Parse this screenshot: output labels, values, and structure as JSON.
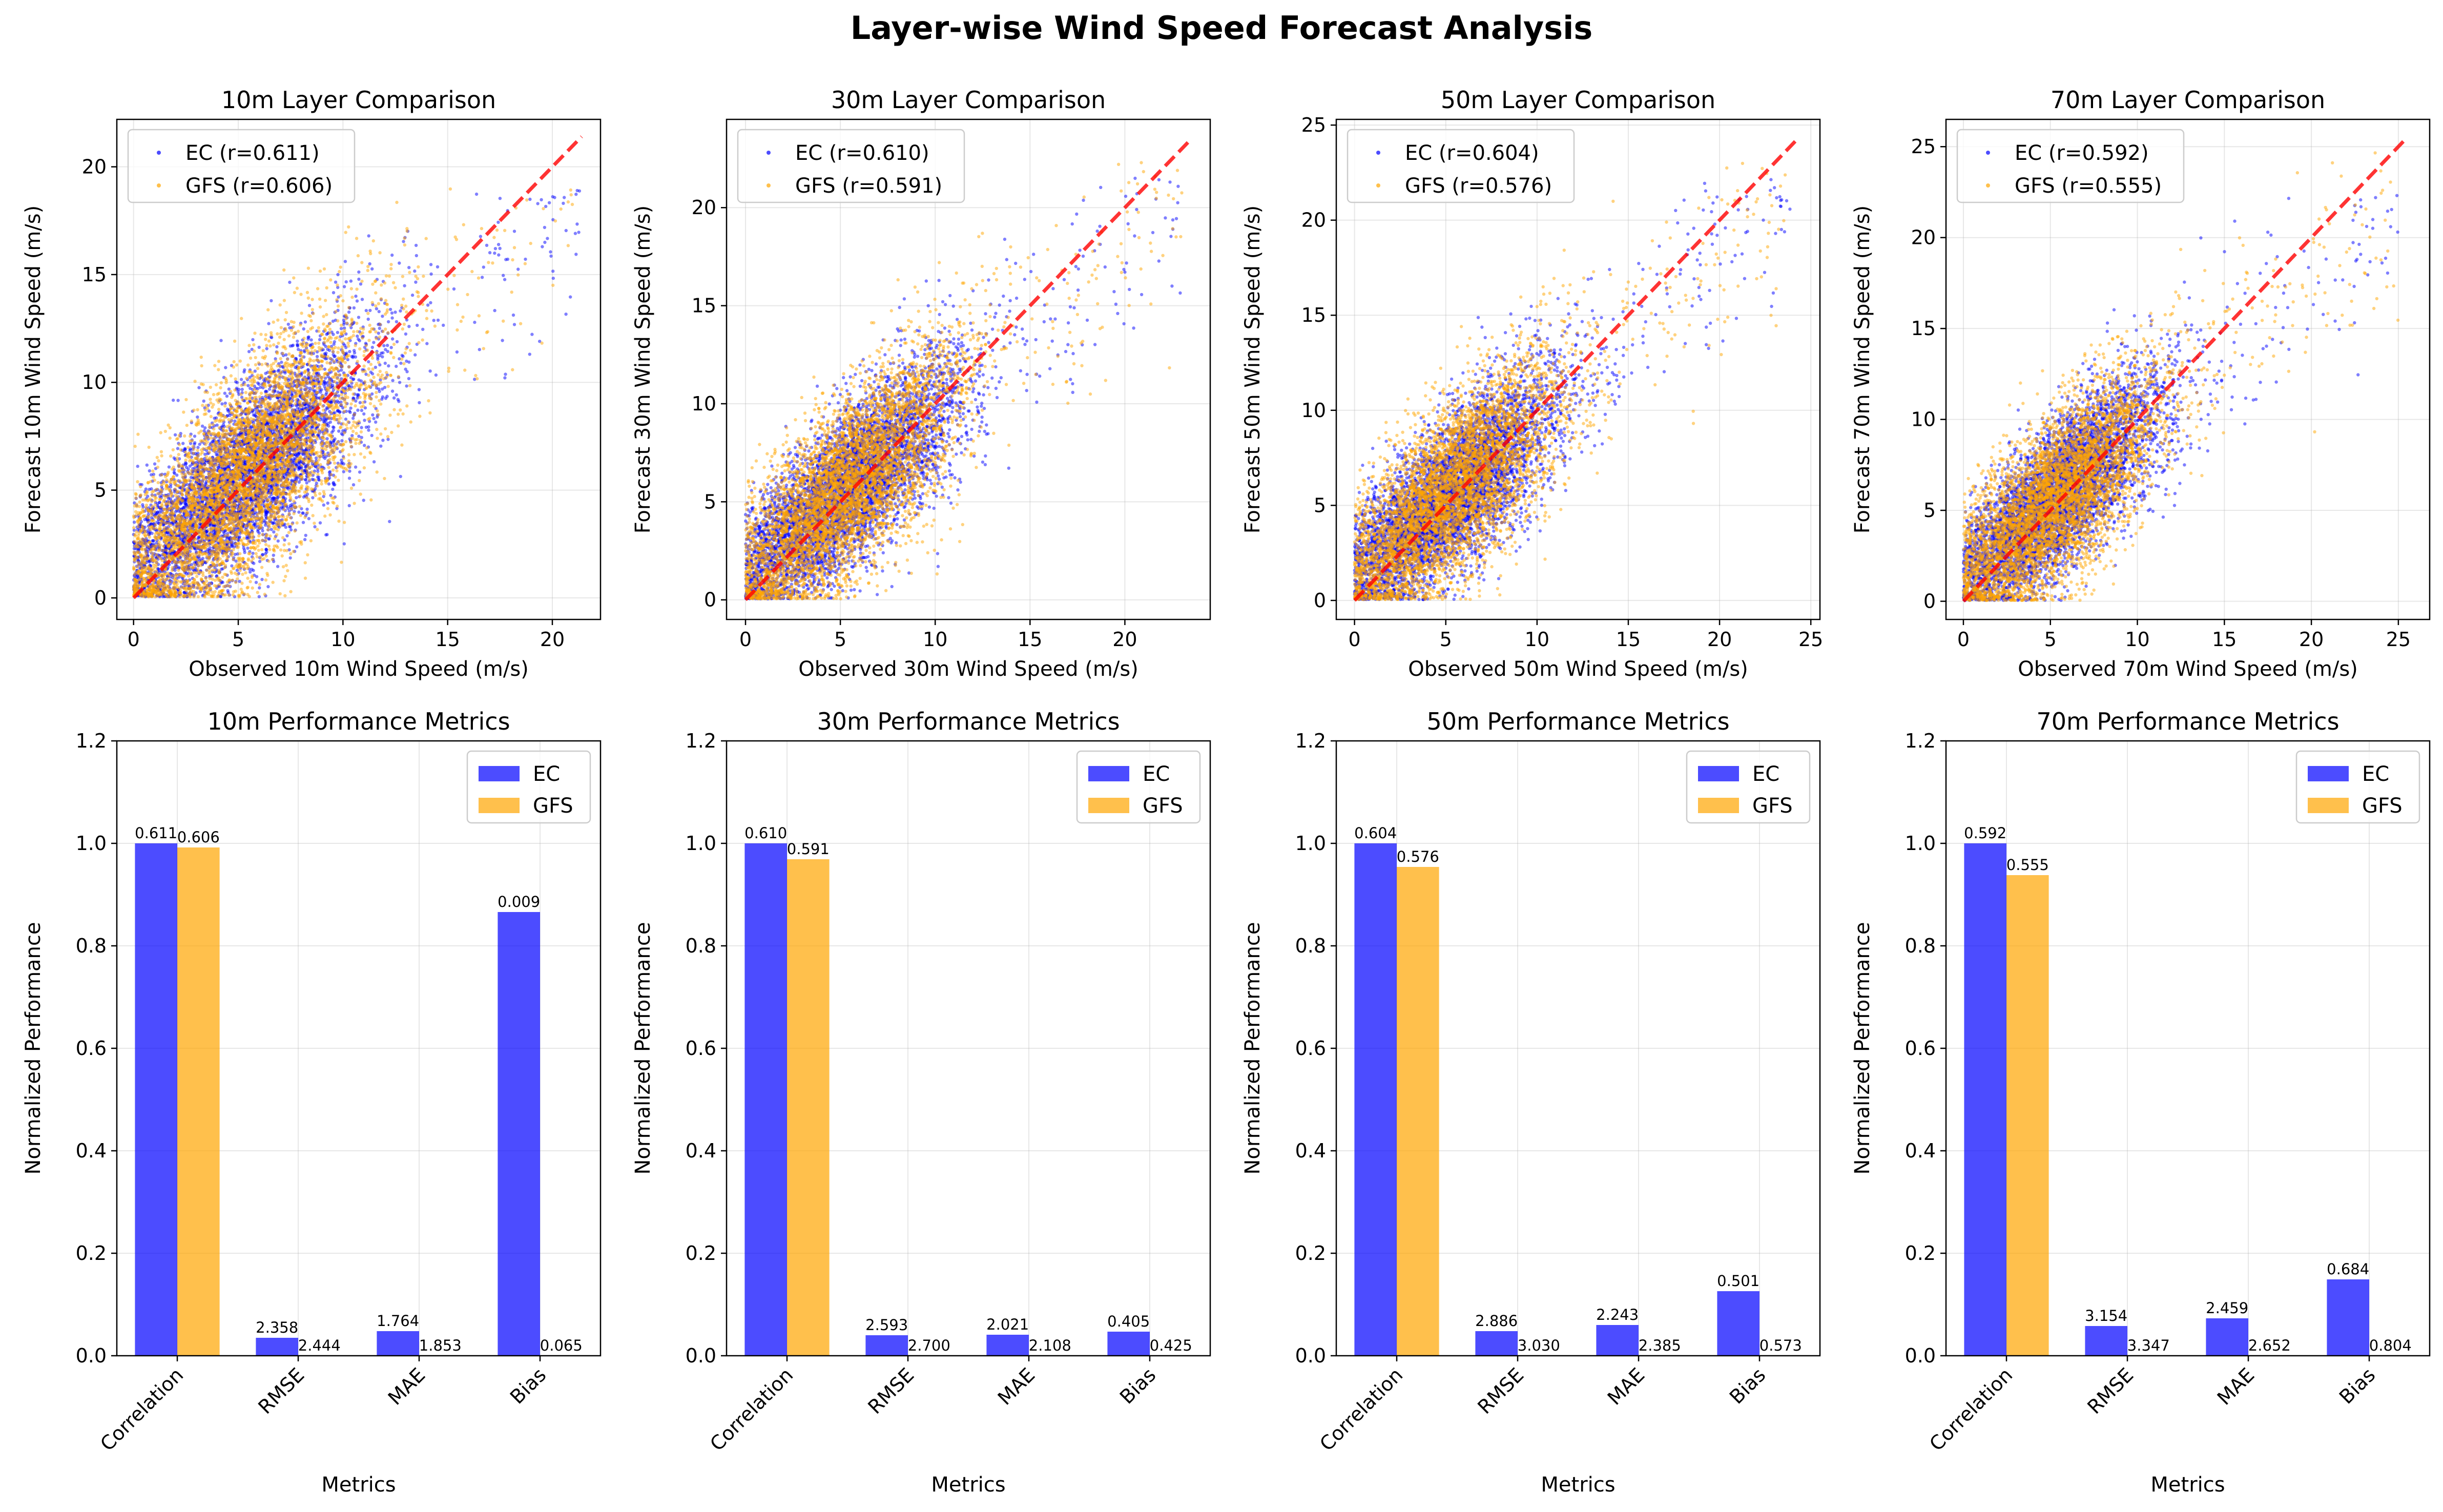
{
  "figure": {
    "title": "Layer-wise Wind Speed Forecast Analysis"
  },
  "colors": {
    "ec": "#0000ff",
    "gfs": "#ffa500",
    "diagonal": "#ff0000",
    "grid": "#b0b0b0"
  },
  "chart_data": [
    {
      "type": "scatter",
      "layer": "10m",
      "title": "10m Layer Comparison",
      "xlabel": "Observed 10m Wind Speed (m/s)",
      "ylabel": "Forecast 10m Wind Speed (m/s)",
      "xlim": [
        -0.8,
        22.3
      ],
      "ylim": [
        -1.0,
        22.2
      ],
      "xticks": [
        0,
        5,
        10,
        15,
        20
      ],
      "yticks": [
        0,
        5,
        10,
        15,
        20
      ],
      "diagonal_max": 21.4,
      "legend_location": "upper-left",
      "grid": true,
      "series": [
        {
          "name": "EC (r=0.611)",
          "r": 0.611,
          "obs_max": 21.4,
          "fc_max": 19.0
        },
        {
          "name": "GFS (r=0.606)",
          "r": 0.606,
          "obs_max": 21.0,
          "fc_max": 19.0
        }
      ]
    },
    {
      "type": "scatter",
      "layer": "30m",
      "title": "30m Layer Comparison",
      "xlabel": "Observed 30m Wind Speed (m/s)",
      "ylabel": "Forecast 30m Wind Speed (m/s)",
      "xlim": [
        -1.0,
        24.5
      ],
      "ylim": [
        -1.0,
        24.5
      ],
      "xticks": [
        0,
        5,
        10,
        15,
        20
      ],
      "yticks": [
        0,
        5,
        10,
        15,
        20
      ],
      "diagonal_max": 23.4,
      "legend_location": "upper-left",
      "grid": true,
      "series": [
        {
          "name": "EC (r=0.610)",
          "r": 0.61,
          "obs_max": 23.0,
          "fc_max": 21.5
        },
        {
          "name": "GFS (r=0.591)",
          "r": 0.591,
          "obs_max": 23.0,
          "fc_max": 22.3
        }
      ]
    },
    {
      "type": "scatter",
      "layer": "50m",
      "title": "50m Layer Comparison",
      "xlabel": "Observed 50m Wind Speed (m/s)",
      "ylabel": "Forecast 50m Wind Speed (m/s)",
      "xlim": [
        -1.0,
        25.5
      ],
      "ylim": [
        -1.0,
        25.3
      ],
      "xticks": [
        0,
        5,
        10,
        15,
        20,
        25
      ],
      "yticks": [
        0,
        5,
        10,
        15,
        20,
        25
      ],
      "diagonal_max": 24.3,
      "legend_location": "upper-left",
      "grid": true,
      "series": [
        {
          "name": "EC (r=0.604)",
          "r": 0.604,
          "obs_max": 24.0,
          "fc_max": 22.5
        },
        {
          "name": "GFS (r=0.576)",
          "r": 0.576,
          "obs_max": 24.0,
          "fc_max": 23.6
        }
      ]
    },
    {
      "type": "scatter",
      "layer": "70m",
      "title": "70m Layer Comparison",
      "xlabel": "Observed 70m Wind Speed (m/s)",
      "ylabel": "Forecast 70m Wind Speed (m/s)",
      "xlim": [
        -1.0,
        26.8
      ],
      "ylim": [
        -1.0,
        26.5
      ],
      "xticks": [
        0,
        5,
        10,
        15,
        20,
        25
      ],
      "yticks": [
        0,
        5,
        10,
        15,
        20,
        25
      ],
      "diagonal_max": 25.4,
      "legend_location": "upper-left",
      "grid": true,
      "series": [
        {
          "name": "EC (r=0.592)",
          "r": 0.592,
          "obs_max": 25.0,
          "fc_max": 23.0
        },
        {
          "name": "GFS (r=0.555)",
          "r": 0.555,
          "obs_max": 25.0,
          "fc_max": 25.0
        }
      ]
    },
    {
      "type": "bar",
      "layer": "10m",
      "title": "10m Performance Metrics",
      "xlabel": "Metrics",
      "ylabel": "Normalized Performance",
      "categories": [
        "Correlation",
        "RMSE",
        "MAE",
        "Bias"
      ],
      "ylim": [
        0,
        1.2
      ],
      "yticks": [
        0.0,
        0.2,
        0.4,
        0.6,
        0.8,
        1.0,
        1.2
      ],
      "legend_location": "upper-right",
      "grid": true,
      "series": [
        {
          "name": "EC",
          "values": [
            1.0,
            0.035,
            0.048,
            0.866
          ],
          "labels": [
            "0.611",
            "2.358",
            "1.764",
            "0.009"
          ]
        },
        {
          "name": "GFS",
          "values": [
            0.992,
            0.0,
            0.0,
            0.0
          ],
          "labels": [
            "0.606",
            "2.444",
            "1.853",
            "0.065"
          ]
        }
      ]
    },
    {
      "type": "bar",
      "layer": "30m",
      "title": "30m Performance Metrics",
      "xlabel": "Metrics",
      "ylabel": "Normalized Performance",
      "categories": [
        "Correlation",
        "RMSE",
        "MAE",
        "Bias"
      ],
      "ylim": [
        0,
        1.2
      ],
      "yticks": [
        0.0,
        0.2,
        0.4,
        0.6,
        0.8,
        1.0,
        1.2
      ],
      "legend_location": "upper-right",
      "grid": true,
      "series": [
        {
          "name": "EC",
          "values": [
            1.0,
            0.04,
            0.041,
            0.047
          ],
          "labels": [
            "0.610",
            "2.593",
            "2.021",
            "0.405"
          ]
        },
        {
          "name": "GFS",
          "values": [
            0.969,
            0.0,
            0.0,
            0.0
          ],
          "labels": [
            "0.591",
            "2.700",
            "2.108",
            "0.425"
          ]
        }
      ]
    },
    {
      "type": "bar",
      "layer": "50m",
      "title": "50m Performance Metrics",
      "xlabel": "Metrics",
      "ylabel": "Normalized Performance",
      "categories": [
        "Correlation",
        "RMSE",
        "MAE",
        "Bias"
      ],
      "ylim": [
        0,
        1.2
      ],
      "yticks": [
        0.0,
        0.2,
        0.4,
        0.6,
        0.8,
        1.0,
        1.2
      ],
      "legend_location": "upper-right",
      "grid": true,
      "series": [
        {
          "name": "EC",
          "values": [
            1.0,
            0.048,
            0.06,
            0.126
          ],
          "labels": [
            "0.604",
            "2.886",
            "2.243",
            "0.501"
          ]
        },
        {
          "name": "GFS",
          "values": [
            0.954,
            0.0,
            0.0,
            0.0
          ],
          "labels": [
            "0.576",
            "3.030",
            "2.385",
            "0.573"
          ]
        }
      ]
    },
    {
      "type": "bar",
      "layer": "70m",
      "title": "70m Performance Metrics",
      "xlabel": "Metrics",
      "ylabel": "Normalized Performance",
      "categories": [
        "Correlation",
        "RMSE",
        "MAE",
        "Bias"
      ],
      "ylim": [
        0,
        1.2
      ],
      "yticks": [
        0.0,
        0.2,
        0.4,
        0.6,
        0.8,
        1.0,
        1.2
      ],
      "legend_location": "upper-right",
      "grid": true,
      "series": [
        {
          "name": "EC",
          "values": [
            1.0,
            0.058,
            0.073,
            0.149
          ],
          "labels": [
            "0.592",
            "3.154",
            "2.459",
            "0.684"
          ]
        },
        {
          "name": "GFS",
          "values": [
            0.938,
            0.0,
            0.0,
            0.0
          ],
          "labels": [
            "0.555",
            "3.347",
            "2.652",
            "0.804"
          ]
        }
      ]
    }
  ]
}
